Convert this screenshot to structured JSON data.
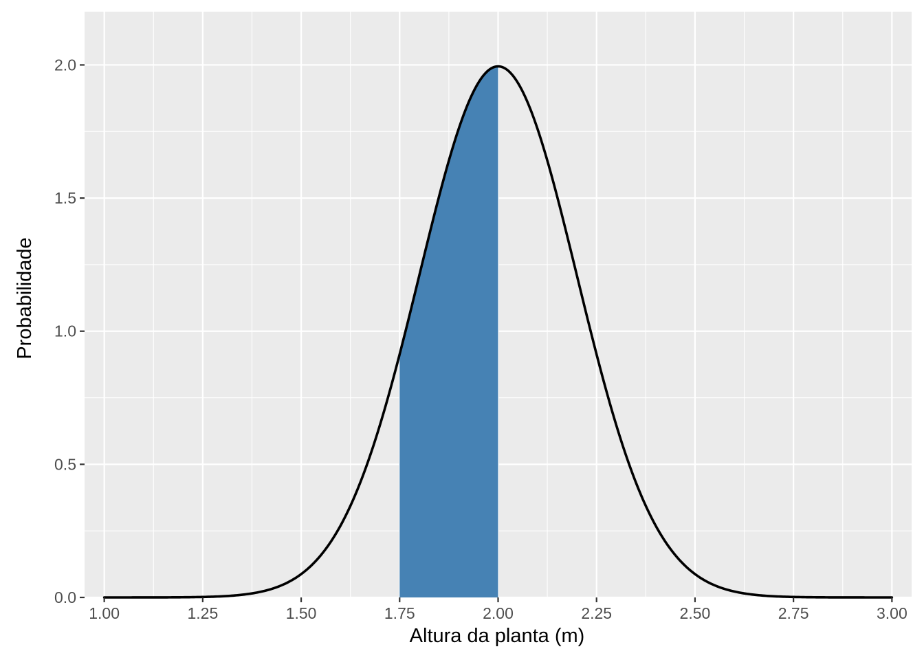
{
  "chart_data": {
    "type": "area",
    "title": "",
    "xlabel": "Altura da planta (m)",
    "ylabel": "Probabilidade",
    "xlim": [
      0.95,
      3.05
    ],
    "ylim": [
      0,
      2.2
    ],
    "grid": true,
    "x_ticks": [
      1.0,
      1.25,
      1.5,
      1.75,
      2.0,
      2.25,
      2.5,
      2.75,
      3.0
    ],
    "x_tick_labels": [
      "1.00",
      "1.25",
      "1.50",
      "1.75",
      "2.00",
      "2.25",
      "2.50",
      "2.75",
      "3.00"
    ],
    "y_ticks": [
      0,
      0.5,
      1.0,
      1.5,
      2.0
    ],
    "y_tick_labels": [
      "0.0",
      "0.5",
      "1.0",
      "1.5",
      "2.0"
    ],
    "curve": {
      "distribution": "normal",
      "mean": 2.0,
      "sd": 0.2,
      "x_range": [
        1.0,
        3.0
      ],
      "color": "#000000"
    },
    "shaded_region": {
      "x_from": 1.75,
      "x_to": 2.0,
      "color": "#4682B4"
    },
    "background_color": "#EBEBEB",
    "grid_color": "#FFFFFF"
  }
}
